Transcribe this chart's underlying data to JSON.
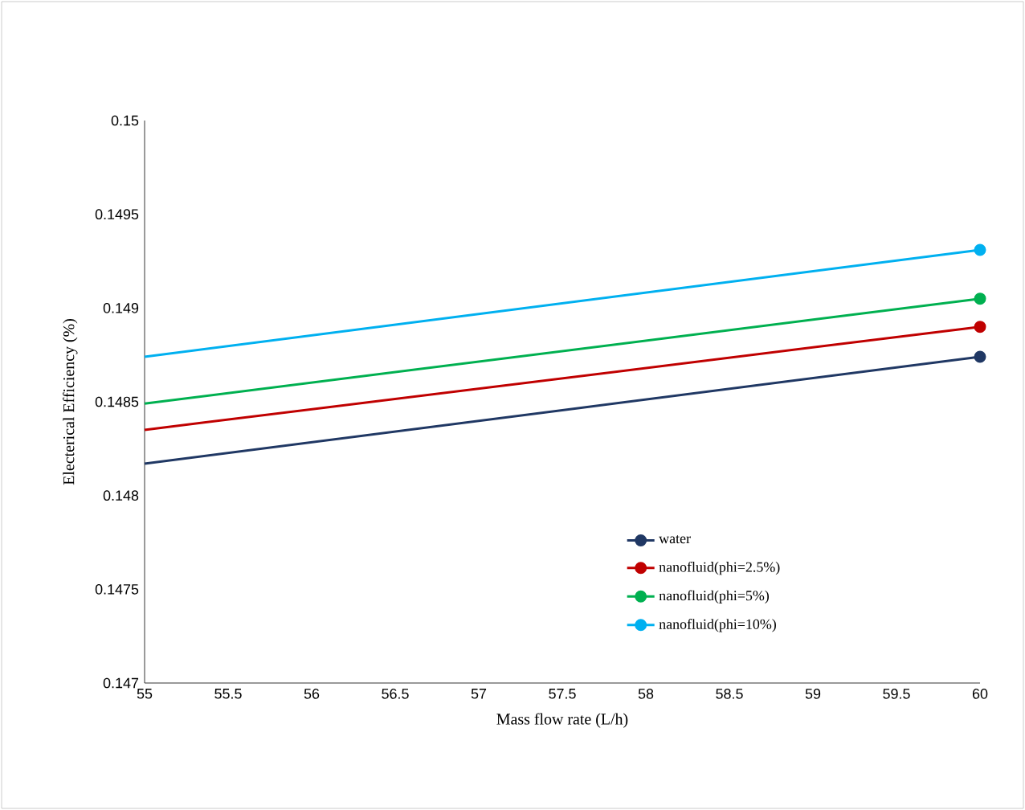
{
  "chart_data": {
    "type": "line",
    "xlabel": "Mass flow rate (L/h)",
    "ylabel": "Electerical Efficiency (%)",
    "x": [
      55,
      60
    ],
    "series": [
      {
        "name": "water",
        "color": "#203864",
        "values": [
          0.14817,
          0.14874
        ]
      },
      {
        "name": "nanofluid(phi=2.5%)",
        "color": "#c00000",
        "values": [
          0.14835,
          0.1489
        ]
      },
      {
        "name": "nanofluid(phi=5%)",
        "color": "#00b050",
        "values": [
          0.14849,
          0.14905
        ]
      },
      {
        "name": "nanofluid(phi=10%)",
        "color": "#00b0f0",
        "values": [
          0.14874,
          0.14931
        ]
      }
    ],
    "xlim": [
      55,
      60
    ],
    "ylim": [
      0.147,
      0.15
    ],
    "xticks": [
      55,
      55.5,
      56,
      56.5,
      57,
      57.5,
      58,
      58.5,
      59,
      59.5,
      60
    ],
    "yticks": [
      0.147,
      0.1475,
      0.148,
      0.1485,
      0.149,
      0.1495,
      0.15
    ],
    "grid": false,
    "legend": "bottom right",
    "marker": "circle",
    "line_style": "solid"
  }
}
